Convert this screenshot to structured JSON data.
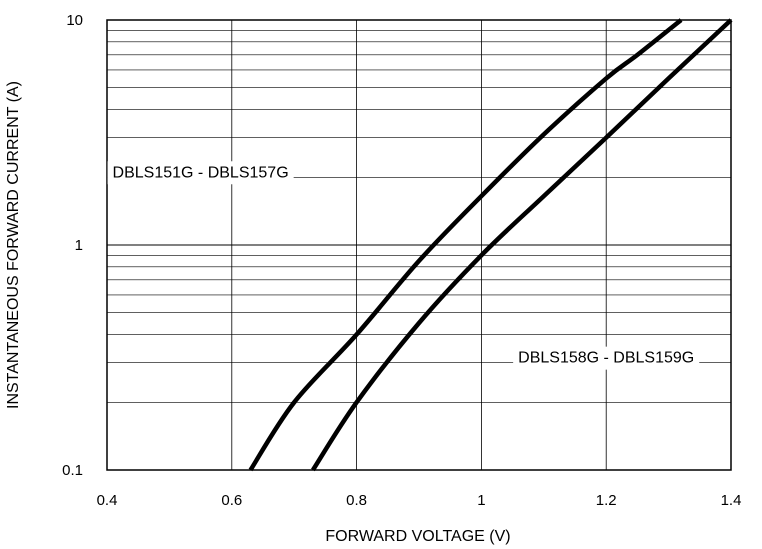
{
  "chart_data": {
    "type": "line",
    "xlabel": "FORWARD VOLTAGE (V)",
    "ylabel": "INSTANTANEOUS FORWARD CURRENT (A)",
    "xlim": [
      0.4,
      1.4
    ],
    "ylim": [
      0.1,
      10
    ],
    "yscale": "log",
    "grid": true,
    "x_ticks": [
      0.4,
      0.6,
      0.8,
      1.0,
      1.2,
      1.4
    ],
    "x_tick_labels": [
      "0.4",
      "0.6",
      "0.8",
      "1",
      "1.2",
      "1.4"
    ],
    "y_ticks": [
      0.1,
      1,
      10
    ],
    "y_tick_labels": [
      "0.1",
      "1",
      "10"
    ],
    "series": [
      {
        "points": [
          [
            0.63,
            0.1
          ],
          [
            0.7,
            0.2
          ],
          [
            0.8,
            0.4
          ],
          [
            0.9,
            0.85
          ],
          [
            1.0,
            1.65
          ],
          [
            1.1,
            3.1
          ],
          [
            1.2,
            5.5
          ],
          [
            1.25,
            7.0
          ],
          [
            1.32,
            10
          ]
        ]
      },
      {
        "points": [
          [
            0.73,
            0.1
          ],
          [
            0.8,
            0.2
          ],
          [
            0.9,
            0.45
          ],
          [
            1.0,
            0.9
          ],
          [
            1.1,
            1.65
          ],
          [
            1.2,
            3.0
          ],
          [
            1.3,
            5.5
          ],
          [
            1.4,
            10
          ]
        ]
      }
    ],
    "annotations": [
      {
        "text": "DBLS151G - DBLS157G",
        "x": 0.55,
        "y": 2.0
      },
      {
        "text": "DBLS158G - DBLS159G",
        "x": 1.2,
        "y": 0.3
      }
    ]
  }
}
